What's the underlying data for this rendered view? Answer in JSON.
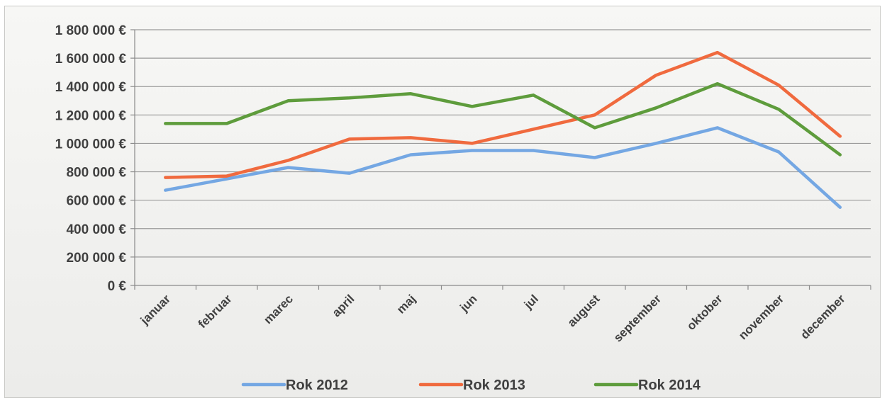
{
  "chart_data": {
    "type": "line",
    "title": "",
    "xlabel": "",
    "ylabel": "",
    "categories": [
      "januar",
      "februar",
      "marec",
      "april",
      "maj",
      "jun",
      "jul",
      "august",
      "september",
      "oktober",
      "november",
      "december"
    ],
    "y_ticks": [
      0,
      200000,
      400000,
      600000,
      800000,
      1000000,
      1200000,
      1400000,
      1600000,
      1800000
    ],
    "y_tick_labels": [
      "0 €",
      "200 000 €",
      "400 000 €",
      "600 000 €",
      "800 000 €",
      "1 000 000 €",
      "1 200 000 €",
      "1 400 000 €",
      "1 600 000 €",
      "1 800 000 €"
    ],
    "ylim": [
      0,
      1800000
    ],
    "grid": true,
    "legend_position": "bottom",
    "series": [
      {
        "name": "Rok 2012",
        "color": "#74a7e3",
        "values": [
          670000,
          750000,
          830000,
          790000,
          920000,
          950000,
          950000,
          900000,
          1000000,
          1110000,
          940000,
          550000
        ]
      },
      {
        "name": "Rok 2013",
        "color": "#f06a3e",
        "values": [
          760000,
          770000,
          880000,
          1030000,
          1040000,
          1000000,
          1100000,
          1200000,
          1480000,
          1640000,
          1410000,
          1050000
        ]
      },
      {
        "name": "Rok 2014",
        "color": "#5e9c3c",
        "values": [
          1140000,
          1140000,
          1300000,
          1320000,
          1350000,
          1260000,
          1340000,
          1110000,
          1250000,
          1420000,
          1240000,
          920000
        ]
      }
    ]
  }
}
